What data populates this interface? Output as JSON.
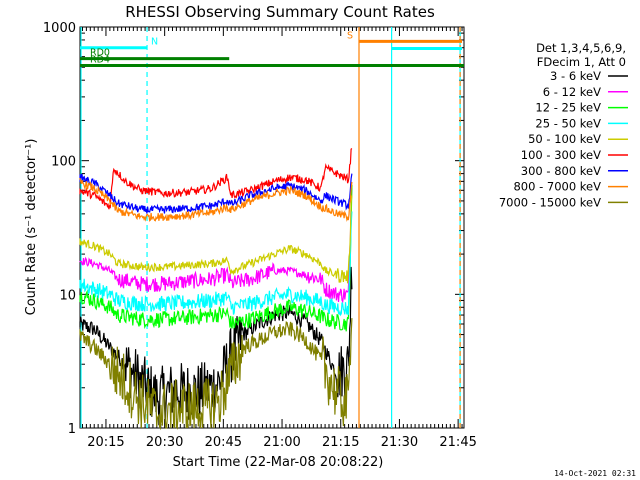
{
  "chart_data": {
    "type": "line",
    "title": "RHESSI Observing Summary Count Rates",
    "xlabel": "Start Time (22-Mar-08 20:08:22)",
    "ylabel": "Count Rate (s⁻¹ detector⁻¹)",
    "y_scale": "log",
    "ylim": [
      1,
      1000
    ],
    "xlim": [
      "20:08:22",
      "21:46:30"
    ],
    "x_tick_labels": [
      "20:15",
      "20:30",
      "20:45",
      "21:00",
      "21:15",
      "21:30",
      "21:45"
    ],
    "y_tick_labels": [
      "1",
      "10",
      "100",
      "1000"
    ],
    "footer_date": "14-Oct-2021 02:31",
    "legend_header": [
      "Det 1,3,4,5,6,9,",
      "FDecim 1, Att 0"
    ],
    "legend_placement": "right",
    "series": [
      {
        "name": "3 - 6 keV",
        "color": "#000000",
        "x": [
          "20:08",
          "20:12",
          "20:16",
          "20:20",
          "20:24",
          "20:28",
          "20:32",
          "20:36",
          "20:40",
          "20:44",
          "20:47",
          "20:50",
          "20:54",
          "20:58",
          "21:02",
          "21:06",
          "21:10",
          "21:14",
          "21:17",
          "21:18"
        ],
        "y": [
          6,
          5.5,
          4,
          3,
          2.2,
          1.7,
          1.9,
          1.9,
          1.9,
          2.2,
          3.5,
          5,
          6,
          7,
          7.3,
          6.2,
          4.5,
          2.5,
          3,
          25
        ]
      },
      {
        "name": "6 - 12 keV",
        "color": "#ff00ff",
        "x": [
          "20:08",
          "20:12",
          "20:16",
          "20:18",
          "20:24",
          "20:30",
          "20:36",
          "20:42",
          "20:46",
          "20:47",
          "20:52",
          "20:58",
          "21:02",
          "21:06",
          "21:10",
          "21:11",
          "21:14",
          "21:17",
          "21:18"
        ],
        "y": [
          18,
          17,
          15,
          13,
          12,
          12,
          12.5,
          13,
          14,
          12,
          13,
          15,
          15,
          14,
          13,
          11,
          10,
          10,
          100
        ]
      },
      {
        "name": "12 - 25 keV",
        "color": "#00ff00",
        "x": [
          "20:08",
          "20:12",
          "20:16",
          "20:18",
          "20:24",
          "20:30",
          "20:36",
          "20:42",
          "20:46",
          "20:47",
          "20:52",
          "20:58",
          "21:02",
          "21:06",
          "21:10",
          "21:11",
          "21:14",
          "21:17",
          "21:18"
        ],
        "y": [
          10,
          9,
          8,
          7,
          6.5,
          6.5,
          6.7,
          7,
          7.2,
          6,
          6.5,
          7.5,
          8,
          7.5,
          6.8,
          6.5,
          6.2,
          6,
          90
        ]
      },
      {
        "name": "25 - 50 keV",
        "color": "#00ffff",
        "x": [
          "20:08",
          "20:12",
          "20:16",
          "20:18",
          "20:24",
          "20:30",
          "20:36",
          "20:42",
          "20:46",
          "20:47",
          "20:52",
          "20:58",
          "21:02",
          "21:06",
          "21:10",
          "21:11",
          "21:14",
          "21:17",
          "21:18"
        ],
        "y": [
          12,
          11,
          10,
          9,
          8.5,
          8.5,
          8.7,
          9,
          9.5,
          8,
          8.5,
          9.5,
          10,
          9.5,
          8.8,
          8.3,
          8,
          7.8,
          60
        ]
      },
      {
        "name": "50 - 100 keV",
        "color": "#cccc00",
        "x": [
          "20:08",
          "20:12",
          "20:16",
          "20:18",
          "20:24",
          "20:30",
          "20:36",
          "20:42",
          "20:46",
          "20:47",
          "20:52",
          "20:58",
          "21:02",
          "21:06",
          "21:10",
          "21:11",
          "21:14",
          "21:17",
          "21:18"
        ],
        "y": [
          25,
          23,
          20,
          17,
          16,
          16,
          16.5,
          17,
          18,
          15,
          17,
          20,
          22,
          20,
          17,
          15,
          14,
          13.5,
          80
        ]
      },
      {
        "name": "100 - 300 keV",
        "color": "#ff0000",
        "x": [
          "20:08",
          "20:12",
          "20:16",
          "20:17",
          "20:20",
          "20:24",
          "20:30",
          "20:36",
          "20:42",
          "20:46",
          "20:47",
          "20:52",
          "20:58",
          "21:02",
          "21:06",
          "21:10",
          "21:11",
          "21:14",
          "21:17",
          "21:18"
        ],
        "y": [
          60,
          55,
          45,
          88,
          70,
          60,
          57,
          58,
          62,
          75,
          55,
          60,
          70,
          75,
          72,
          62,
          88,
          80,
          72,
          145
        ]
      },
      {
        "name": "300 - 800 keV",
        "color": "#0000ff",
        "x": [
          "20:08",
          "20:12",
          "20:16",
          "20:18",
          "20:24",
          "20:30",
          "20:36",
          "20:42",
          "20:46",
          "20:47",
          "20:52",
          "20:58",
          "21:02",
          "21:06",
          "21:10",
          "21:11",
          "21:14",
          "21:17",
          "21:18"
        ],
        "y": [
          75,
          68,
          55,
          48,
          43,
          43,
          44,
          46,
          50,
          47,
          55,
          62,
          65,
          60,
          50,
          55,
          50,
          46,
          85
        ]
      },
      {
        "name": "800 - 7000 keV",
        "color": "#ff8000",
        "x": [
          "20:08",
          "20:12",
          "20:16",
          "20:18",
          "20:24",
          "20:30",
          "20:36",
          "20:42",
          "20:46",
          "20:47",
          "20:52",
          "20:58",
          "21:02",
          "21:06",
          "21:10",
          "21:11",
          "21:14",
          "21:17",
          "21:18"
        ],
        "y": [
          70,
          62,
          50,
          42,
          38,
          38,
          39,
          41,
          45,
          43,
          50,
          57,
          60,
          55,
          45,
          44,
          40,
          38,
          80
        ]
      },
      {
        "name": "7000 - 15000 keV",
        "color": "#808000",
        "x": [
          "20:08",
          "20:12",
          "20:16",
          "20:20",
          "20:24",
          "20:28",
          "20:32",
          "20:36",
          "20:40",
          "20:44",
          "20:47",
          "20:50",
          "20:54",
          "20:58",
          "21:02",
          "21:06",
          "21:10",
          "21:14",
          "21:17",
          "21:18"
        ],
        "y": [
          5,
          4,
          3,
          2.2,
          1.6,
          1.3,
          1.4,
          1.4,
          1.4,
          1.6,
          2.6,
          4,
          4.5,
          5.2,
          5.5,
          4.6,
          3.2,
          1.8,
          1.5,
          15
        ]
      }
    ],
    "flags": [
      {
        "label": "N",
        "color": "#00ffff",
        "y": 700,
        "x_start": "20:08:22",
        "x_end": "20:25:30"
      },
      {
        "label": "RD0",
        "color": "#008000",
        "y": 580,
        "x_start": "20:08:22",
        "x_end": "20:46:30"
      },
      {
        "label": "RD4",
        "color": "#008000",
        "y": 515,
        "x_start": "20:08:22",
        "x_end": "21:46:30"
      },
      {
        "label": "S",
        "color": "#ff8000",
        "y": 780,
        "x_start": "21:19:40",
        "x_end": "21:46:00"
      },
      {
        "label": "",
        "color": "#00ffff",
        "y": 690,
        "x_start": "21:28:00",
        "x_end": "21:46:00"
      }
    ],
    "vertical_lines": [
      {
        "x": "20:08:22",
        "color": "#00ffff",
        "style": "solid"
      },
      {
        "x": "20:25:30",
        "color": "#00ffff",
        "style": "dashed"
      },
      {
        "x": "21:19:40",
        "color": "#ff8000",
        "style": "solid"
      },
      {
        "x": "21:28:00",
        "color": "#00ffff",
        "style": "solid"
      },
      {
        "x": "21:45:30",
        "color": "#00ffff",
        "style": "solid"
      },
      {
        "x": "21:45:30",
        "color": "#ff8000",
        "style": "dashed"
      }
    ]
  }
}
